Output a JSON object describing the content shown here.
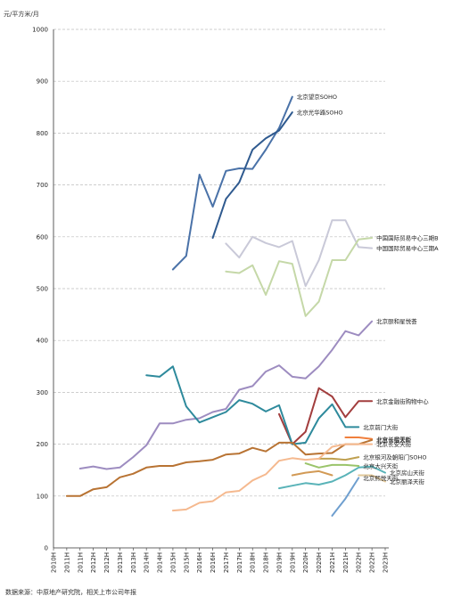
{
  "source": "数据来源：中原地产研究院，相关上市公司年报",
  "chart_data": {
    "type": "line",
    "title": "",
    "xlabel": "",
    "ylabel": "元/平方米/月",
    "ylim": [
      0,
      1000
    ],
    "yticks": [
      0,
      100,
      200,
      300,
      400,
      500,
      600,
      700,
      800,
      900,
      1000
    ],
    "grid": true,
    "legend": "inline end-of-line labels",
    "x": [
      "2010H",
      "2011H",
      "2011H",
      "2012H",
      "2012H",
      "2013H",
      "2013H",
      "2014H",
      "2014H",
      "2015H",
      "2015H",
      "2016H",
      "2016H",
      "2017H",
      "2017H",
      "2018H",
      "2018H",
      "2019H",
      "2019H",
      "2020H",
      "2020H",
      "2021H",
      "2021H",
      "2022H",
      "2022H",
      "2023H"
    ],
    "series": [
      {
        "name": "北京望京SOHO",
        "color": "#4a72a8",
        "values": [
          null,
          null,
          null,
          null,
          null,
          null,
          null,
          null,
          null,
          537,
          563,
          720,
          658,
          727,
          732,
          731,
          768,
          810,
          870,
          null,
          null,
          null,
          null,
          null,
          null,
          null
        ]
      },
      {
        "name": "北京光华路SOHO",
        "color": "#2f5a8f",
        "values": [
          null,
          null,
          null,
          null,
          null,
          null,
          null,
          null,
          null,
          null,
          null,
          null,
          598,
          673,
          705,
          768,
          790,
          805,
          840,
          null,
          null,
          null,
          null,
          null,
          null,
          null
        ]
      },
      {
        "name": "中国国际贸易中心三期A",
        "color": "#c9c9d8",
        "values": [
          null,
          null,
          null,
          null,
          null,
          null,
          null,
          null,
          null,
          null,
          null,
          null,
          null,
          587,
          560,
          600,
          588,
          580,
          592,
          505,
          555,
          632,
          632,
          580,
          578,
          null
        ]
      },
      {
        "name": "中国国际贸易中心三期B",
        "color": "#c5d8a8",
        "values": [
          null,
          null,
          null,
          null,
          null,
          null,
          null,
          null,
          null,
          null,
          null,
          null,
          null,
          533,
          530,
          545,
          488,
          553,
          548,
          447,
          475,
          555,
          555,
          595,
          598,
          null
        ]
      },
      {
        "name": "北京颐和星悦荟",
        "color": "#9d8cc0",
        "values": [
          null,
          null,
          153,
          157,
          152,
          155,
          175,
          198,
          240,
          240,
          247,
          250,
          262,
          268,
          305,
          312,
          340,
          352,
          330,
          327,
          350,
          382,
          418,
          410,
          437,
          null
        ]
      },
      {
        "name": "北京金融街购物中心",
        "color": "#a23d3d",
        "values": [
          null,
          null,
          null,
          null,
          null,
          null,
          null,
          null,
          null,
          null,
          null,
          null,
          null,
          null,
          null,
          null,
          null,
          258,
          200,
          224,
          308,
          292,
          252,
          283,
          283,
          null
        ]
      },
      {
        "name": "北京前门大街",
        "color": "#2e8a9c",
        "values": [
          null,
          null,
          null,
          null,
          null,
          null,
          null,
          333,
          330,
          350,
          273,
          242,
          252,
          262,
          285,
          278,
          263,
          275,
          200,
          203,
          250,
          277,
          233,
          233,
          null,
          null
        ]
      },
      {
        "name": "北京长楹天街",
        "color": "#f07f3c",
        "values": [
          null,
          null,
          null,
          null,
          null,
          null,
          null,
          null,
          null,
          null,
          null,
          null,
          null,
          null,
          null,
          null,
          null,
          null,
          null,
          null,
          null,
          null,
          213,
          213,
          210,
          null
        ]
      },
      {
        "name": "北京银河及朝阳门SOHO",
        "color": "#bfa050",
        "values": [
          null,
          null,
          null,
          null,
          null,
          null,
          null,
          null,
          null,
          null,
          null,
          null,
          null,
          null,
          null,
          null,
          null,
          null,
          null,
          null,
          172,
          172,
          170,
          175,
          null,
          null
        ]
      },
      {
        "name": "北京世贸天阶",
        "color": "#b87333",
        "values": [
          null,
          100,
          100,
          113,
          117,
          136,
          143,
          155,
          158,
          158,
          165,
          167,
          170,
          180,
          182,
          193,
          186,
          203,
          203,
          180,
          182,
          183,
          200,
          200,
          208,
          null
        ]
      },
      {
        "name": "北京长安天街",
        "color": "#f5b98f",
        "values": [
          null,
          null,
          null,
          null,
          null,
          null,
          null,
          null,
          null,
          72,
          74,
          87,
          90,
          107,
          110,
          130,
          142,
          168,
          173,
          170,
          172,
          195,
          200,
          200,
          200,
          null
        ]
      },
      {
        "name": "北京房山天街",
        "color": "#59b3b8",
        "values": [
          null,
          null,
          null,
          null,
          null,
          null,
          null,
          null,
          null,
          null,
          null,
          null,
          null,
          null,
          null,
          null,
          null,
          115,
          120,
          125,
          122,
          128,
          140,
          155,
          157,
          145
        ]
      },
      {
        "name": "北京大兴天街",
        "color": "#9ac46a",
        "values": [
          null,
          null,
          null,
          null,
          null,
          null,
          null,
          null,
          null,
          null,
          null,
          null,
          null,
          null,
          null,
          null,
          null,
          null,
          null,
          163,
          155,
          160,
          160,
          158,
          null,
          null
        ]
      },
      {
        "name": "北京房山天街-b",
        "color": "#d29a55",
        "values": [
          null,
          null,
          null,
          null,
          null,
          null,
          null,
          null,
          null,
          null,
          null,
          null,
          null,
          null,
          null,
          null,
          null,
          null,
          140,
          145,
          148,
          140,
          null,
          null,
          null,
          null
        ]
      },
      {
        "name": "北京丽泽天街",
        "color": "#e2c89a",
        "values": [
          null,
          null,
          null,
          null,
          null,
          null,
          null,
          null,
          null,
          null,
          null,
          null,
          null,
          null,
          null,
          null,
          null,
          null,
          null,
          null,
          null,
          null,
          null,
          140,
          140,
          128
        ]
      },
      {
        "name": "北京熙悦天街",
        "color": "#6f9fcf",
        "values": [
          null,
          null,
          null,
          null,
          null,
          null,
          null,
          null,
          null,
          null,
          null,
          null,
          null,
          null,
          null,
          null,
          null,
          null,
          null,
          null,
          null,
          62,
          95,
          135,
          null,
          null
        ]
      }
    ],
    "labels": [
      {
        "text": "北京望京SOHO",
        "series": 0
      },
      {
        "text": "北京光华路SOHO",
        "series": 1
      },
      {
        "text": "中国国际贸易中心三期A",
        "series": 2
      },
      {
        "text": "中国国际贸易中心三期B",
        "series": 3
      },
      {
        "text": "北京颐和星悦荟",
        "series": 4
      },
      {
        "text": "北京金融街购物中心",
        "series": 5
      },
      {
        "text": "北京前门大街",
        "series": 6
      },
      {
        "text": "北京长楹天街",
        "series": 7
      },
      {
        "text": "北京银河及朝阳门SOHO",
        "series": 8
      },
      {
        "text": "北京世贸天阶",
        "series": 9
      },
      {
        "text": "北京长安天街",
        "series": 10
      },
      {
        "text": "北京房山天街",
        "series": 11
      },
      {
        "text": "北京大兴天街",
        "series": 12
      },
      {
        "text": "北京丽泽天街",
        "series": 14
      },
      {
        "text": "北京熙悦天街",
        "series": 15
      }
    ]
  }
}
